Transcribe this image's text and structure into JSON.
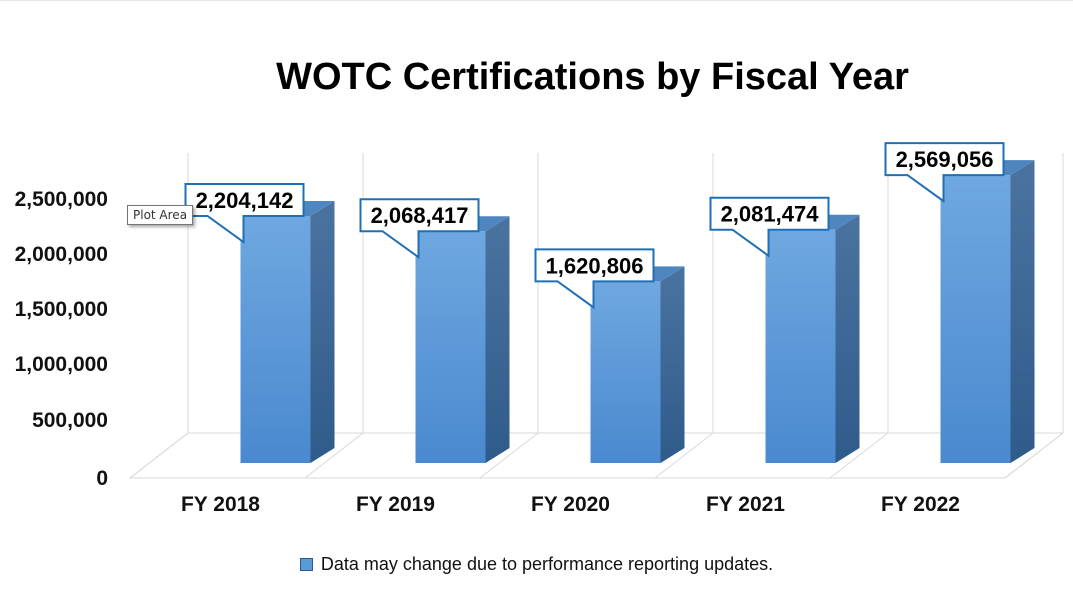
{
  "chart_data": {
    "type": "bar",
    "title": "WOTC Certifications by Fiscal Year",
    "categories": [
      "FY 2018",
      "FY 2019",
      "FY 2020",
      "FY 2021",
      "FY 2022"
    ],
    "series": [
      {
        "name": "Data may change due to performance reporting updates.",
        "values": [
          2204142,
          2068417,
          1620806,
          2081474,
          2569056
        ],
        "labels": [
          "2,204,142",
          "2,068,417",
          "1,620,806",
          "2,081,474",
          "2,569,056"
        ]
      }
    ],
    "y_ticks": [
      "0",
      "500,000",
      "1,000,000",
      "1,500,000",
      "2,000,000",
      "2,500,000"
    ],
    "y_tick_values": [
      0,
      500000,
      1000000,
      1500000,
      2000000,
      2500000
    ],
    "ylim": [
      0,
      2500000
    ],
    "grid": true,
    "legend_position": "bottom",
    "style": "3d-bars"
  },
  "tooltip": {
    "text": "Plot Area"
  },
  "colors": {
    "bar_front": "#5b9bd5",
    "bar_side": "#3a6694",
    "bar_top": "#4f86c0",
    "label_border": "#1f6fb5",
    "grid": "#d9d9d9"
  }
}
